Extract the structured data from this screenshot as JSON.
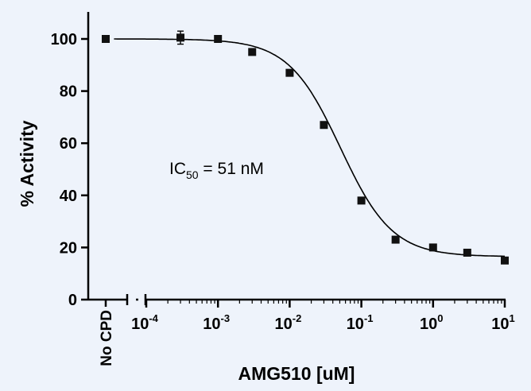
{
  "chart_data": {
    "type": "scatter",
    "xscale": "log",
    "xlabel": "AMG510 [uM]",
    "ylabel": "% Activity",
    "ylim": [
      0,
      110
    ],
    "yticks": [
      "0",
      "20",
      "40",
      "60",
      "80",
      "100"
    ],
    "xtick_labels": [
      {
        "base": "10",
        "exp": "-4"
      },
      {
        "base": "10",
        "exp": "-3"
      },
      {
        "base": "10",
        "exp": "-2"
      },
      {
        "base": "10",
        "exp": "-1"
      },
      {
        "base": "10",
        "exp": "0"
      },
      {
        "base": "10",
        "exp": "1"
      }
    ],
    "control": {
      "label": "No CPD",
      "y": 100
    },
    "annotation": {
      "prefix": "IC",
      "subscript": "50",
      "suffix": " = 51 nM"
    },
    "fit": {
      "top": 100,
      "bottom": 16.5,
      "ic50_uM": 0.051,
      "hill": 1.2
    },
    "points": [
      {
        "x": 0.0003,
        "y": 100.5,
        "err": 2.5
      },
      {
        "x": 0.001,
        "y": 100,
        "err": 1
      },
      {
        "x": 0.003,
        "y": 95,
        "err": 1
      },
      {
        "x": 0.01,
        "y": 87,
        "err": 1
      },
      {
        "x": 0.03,
        "y": 67,
        "err": 1
      },
      {
        "x": 0.1,
        "y": 38,
        "err": 1
      },
      {
        "x": 0.3,
        "y": 23,
        "err": 1
      },
      {
        "x": 1,
        "y": 20,
        "err": 1.2
      },
      {
        "x": 3,
        "y": 18,
        "err": 1
      },
      {
        "x": 10,
        "y": 15,
        "err": 1
      }
    ]
  }
}
